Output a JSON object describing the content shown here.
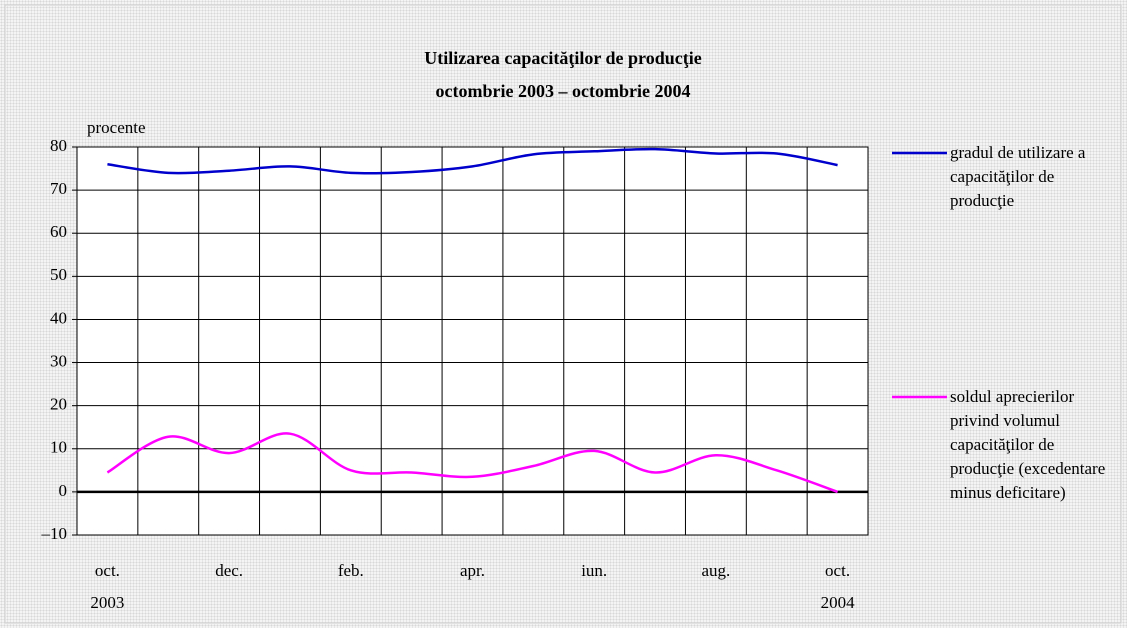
{
  "chart_data": {
    "type": "line",
    "title": "Utilizarea capacităţilor de producţie",
    "subtitle": "octombrie 2003 – octombrie 2004",
    "y_axis_label": "procente",
    "categories": [
      "oct.",
      null,
      "dec.",
      null,
      "feb.",
      null,
      "apr.",
      null,
      "iun.",
      null,
      "aug.",
      null,
      "oct."
    ],
    "category_years": [
      "2003",
      null,
      null,
      null,
      null,
      null,
      null,
      null,
      null,
      null,
      null,
      null,
      "2004"
    ],
    "ylim": [
      -10,
      80
    ],
    "yticks": [
      {
        "value": -10,
        "label": "–10"
      },
      0,
      10,
      20,
      30,
      40,
      50,
      60,
      70,
      80
    ],
    "grid": true,
    "legend": "right",
    "series": [
      {
        "name": "gradul de utilizare a capacităţilor de producţie",
        "color": "#0000cc",
        "values": [
          76,
          74,
          74.5,
          75.5,
          74,
          74.2,
          75.5,
          78.3,
          79,
          79.5,
          78.5,
          78.5,
          75.8
        ]
      },
      {
        "name": "soldul aprecierilor privind volumul capacităţilor de producţie (excedentare minus deficitare)",
        "color": "#ff00ff",
        "values": [
          4.5,
          12.8,
          9,
          13.5,
          5,
          4.5,
          3.5,
          6,
          9.5,
          4.5,
          8.5,
          5,
          0
        ]
      }
    ]
  }
}
